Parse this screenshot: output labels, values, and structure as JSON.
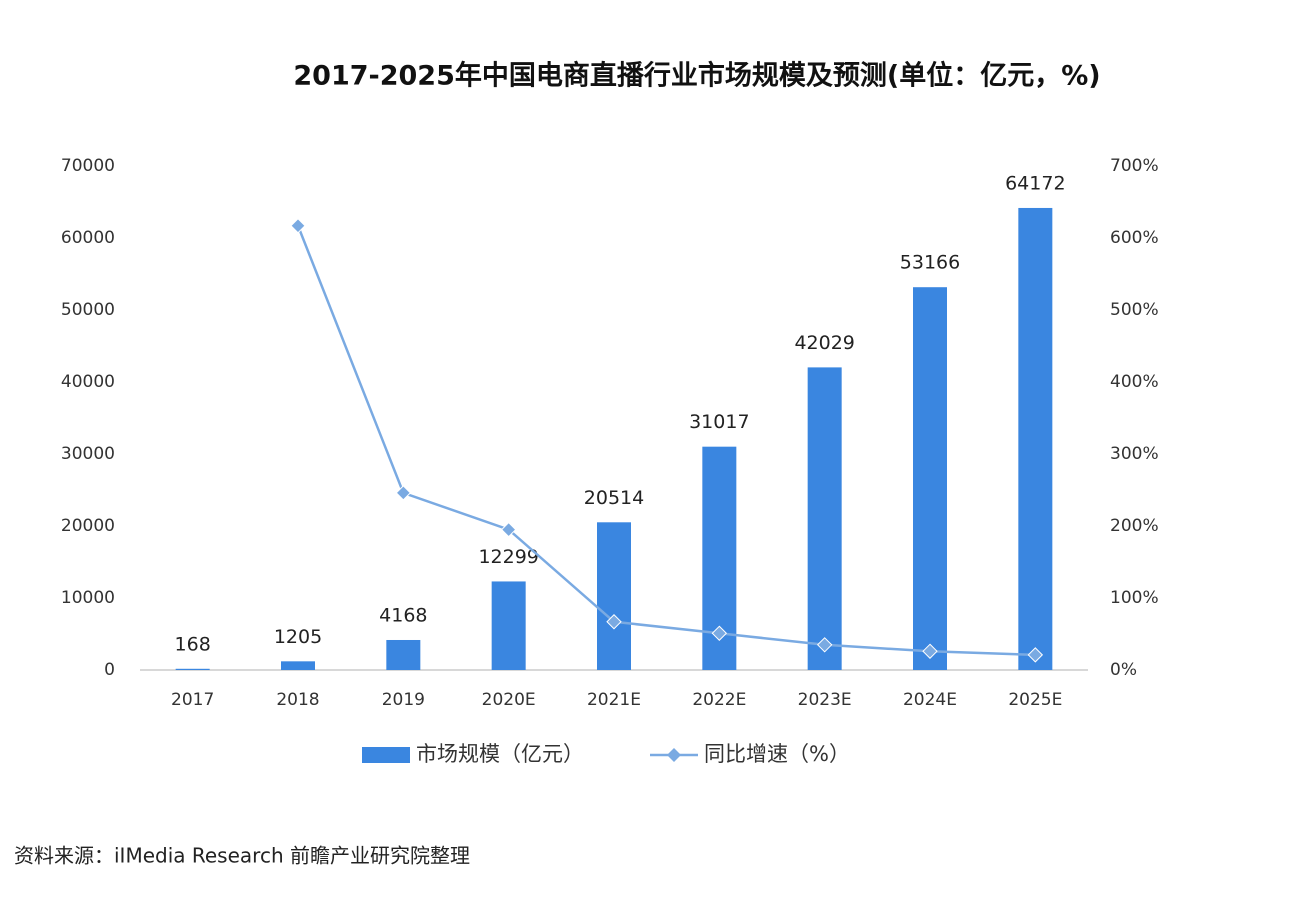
{
  "chart_data": {
    "type": "bar",
    "title": "2017-2025年中国电商直播行业市场规模及预测(单位：亿元，%)",
    "source": "资料来源：iIMedia Research 前瞻产业研究院整理",
    "categories": [
      "2017",
      "2018",
      "2019",
      "2020E",
      "2021E",
      "2022E",
      "2023E",
      "2024E",
      "2025E"
    ],
    "series": [
      {
        "name": "市场规模（亿元）",
        "type": "bar",
        "color": "#3a86e0",
        "values": [
          168,
          1205,
          4168,
          12299,
          20514,
          31017,
          42029,
          53166,
          64172
        ]
      },
      {
        "name": "同比增速（%）",
        "type": "line",
        "axis": "y2",
        "color": "#7aaae2",
        "values": [
          null,
          617,
          246,
          195,
          67,
          51,
          35,
          26,
          21
        ]
      }
    ],
    "ylim": [
      0,
      70000
    ],
    "yticks": [
      0,
      10000,
      20000,
      30000,
      40000,
      50000,
      60000,
      70000
    ],
    "y2lim": [
      0,
      700
    ],
    "y2ticks": [
      {
        "value": 0,
        "label": "0%"
      },
      {
        "value": 100,
        "label": "100%"
      },
      {
        "value": 200,
        "label": "200%"
      },
      {
        "value": 300,
        "label": "300%"
      },
      {
        "value": 400,
        "label": "400%"
      },
      {
        "value": 500,
        "label": "500%"
      },
      {
        "value": 600,
        "label": "600%"
      },
      {
        "value": 700,
        "label": "700%"
      }
    ],
    "grid": false,
    "legend": "bottom"
  }
}
